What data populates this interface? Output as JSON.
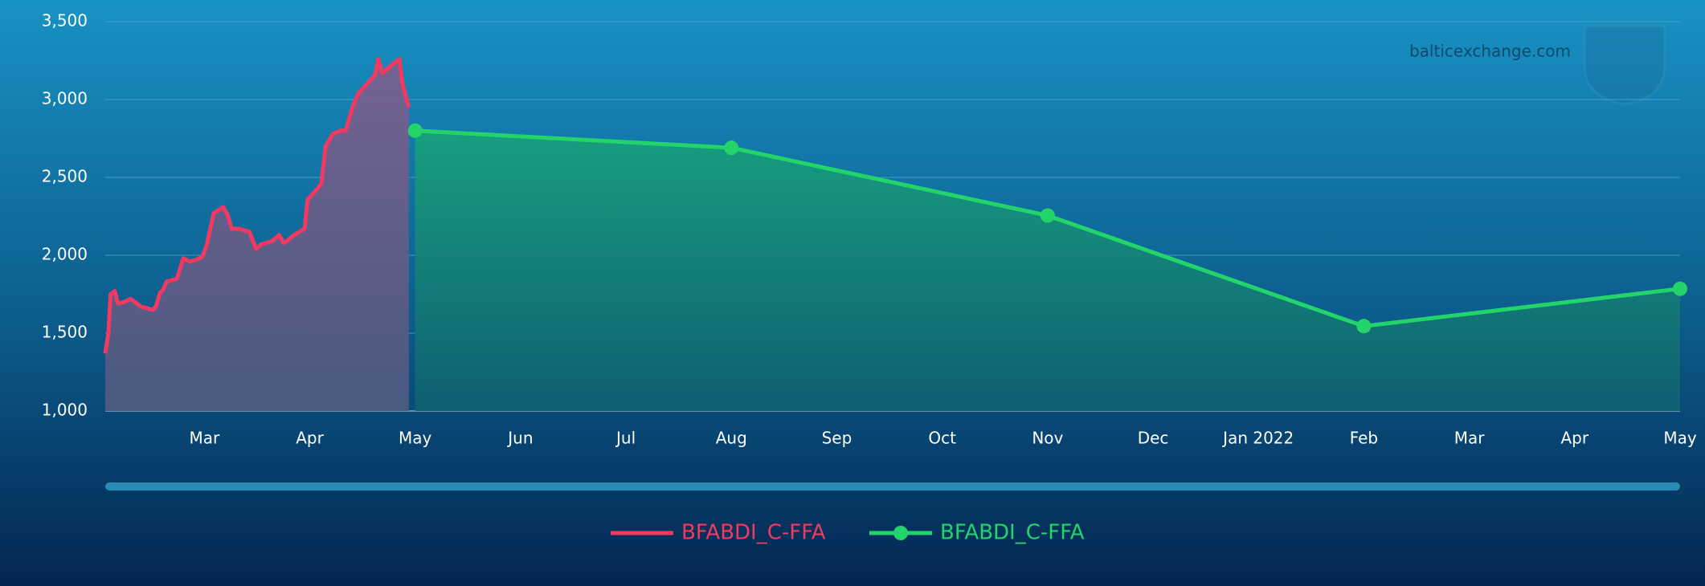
{
  "chart_data": {
    "type": "line",
    "watermark": "balticexchange.com",
    "xlim": [
      1.06,
      16
    ],
    "xticks": [
      {
        "value": 2,
        "label": "Mar"
      },
      {
        "value": 3,
        "label": "Apr"
      },
      {
        "value": 4,
        "label": "May"
      },
      {
        "value": 5,
        "label": "Jun"
      },
      {
        "value": 6,
        "label": "Jul"
      },
      {
        "value": 7,
        "label": "Aug"
      },
      {
        "value": 8,
        "label": "Sep"
      },
      {
        "value": 9,
        "label": "Oct"
      },
      {
        "value": 10,
        "label": "Nov"
      },
      {
        "value": 11,
        "label": "Dec"
      },
      {
        "value": 12,
        "label": "Jan 2022"
      },
      {
        "value": 13,
        "label": "Feb"
      },
      {
        "value": 14,
        "label": "Mar"
      },
      {
        "value": 15,
        "label": "Apr"
      },
      {
        "value": 16,
        "label": "May"
      }
    ],
    "ylim": [
      1000,
      3500
    ],
    "yticks": [
      {
        "value": 1000,
        "label": "1,000"
      },
      {
        "value": 1500,
        "label": "1,500"
      },
      {
        "value": 2000,
        "label": "2,000"
      },
      {
        "value": 2500,
        "label": "2,500"
      },
      {
        "value": 3000,
        "label": "3,000"
      },
      {
        "value": 3500,
        "label": "3,500"
      }
    ],
    "grid": true,
    "legend": "bottom",
    "series": [
      {
        "name": "BFABDI_C-FFA",
        "color": "#f2395f",
        "markers": false,
        "x": [
          1.06,
          1.09,
          1.11,
          1.15,
          1.18,
          1.24,
          1.3,
          1.36,
          1.4,
          1.51,
          1.54,
          1.58,
          1.61,
          1.64,
          1.69,
          1.74,
          1.8,
          1.86,
          1.92,
          1.98,
          2.02,
          2.09,
          2.18,
          2.22,
          2.26,
          2.33,
          2.43,
          2.49,
          2.54,
          2.64,
          2.71,
          2.75,
          2.78,
          2.85,
          2.9,
          2.95,
          2.98,
          3.05,
          3.11,
          3.15,
          3.22,
          3.29,
          3.34,
          3.41,
          3.46,
          3.57,
          3.62,
          3.65,
          3.69,
          3.74,
          3.81,
          3.85,
          3.88,
          3.94
        ],
        "values": [
          1370,
          1500,
          1750,
          1770,
          1690,
          1700,
          1720,
          1690,
          1670,
          1650,
          1670,
          1760,
          1780,
          1830,
          1840,
          1850,
          1980,
          1960,
          1970,
          1990,
          2060,
          2270,
          2310,
          2260,
          2170,
          2170,
          2150,
          2040,
          2070,
          2090,
          2130,
          2080,
          2090,
          2130,
          2150,
          2170,
          2360,
          2410,
          2460,
          2700,
          2780,
          2800,
          2800,
          2960,
          3040,
          3120,
          3160,
          3260,
          3170,
          3200,
          3240,
          3260,
          3100,
          2950
        ]
      },
      {
        "name": "BFABDI_C-FFA",
        "color": "#22d46a",
        "markers": true,
        "x": [
          4,
          7,
          10,
          13,
          16
        ],
        "values": [
          2800,
          2690,
          2255,
          1545,
          1785
        ]
      }
    ]
  }
}
